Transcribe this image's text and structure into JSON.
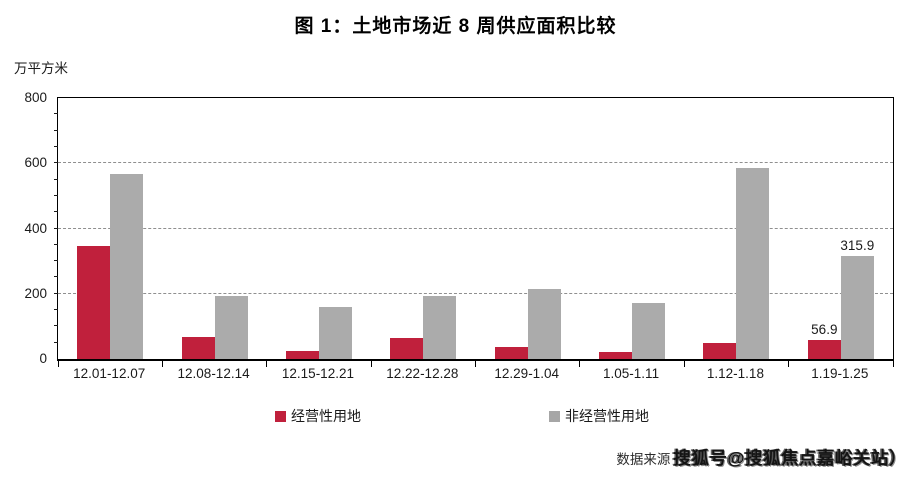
{
  "chart_data": {
    "type": "bar",
    "title": "图 1：土地市场近 8 周供应面积比较",
    "unit_label": "万平方米",
    "categories": [
      "12.01-12.07",
      "12.08-12.14",
      "12.15-12.21",
      "12.22-12.28",
      "12.29-1.04",
      "1.05-1.11",
      "1.12-1.18",
      "1.19-1.25"
    ],
    "series": [
      {
        "name": "经营性用地",
        "color": "#c0203c",
        "legend_color": "#c0203c",
        "values": [
          345,
          69,
          25,
          63,
          38,
          23,
          48,
          56.9
        ]
      },
      {
        "name": "非经营性用地",
        "color": "#ababab",
        "legend_color": "#a6a6a6",
        "values": [
          568,
          194,
          158,
          192,
          216,
          172,
          585,
          315.9
        ]
      }
    ],
    "ylim": [
      0,
      800
    ],
    "yticks": [
      0,
      200,
      400,
      600,
      800
    ],
    "minor_tick_step": 50,
    "grid": "horizontal-dashed",
    "legend_position": "bottom",
    "data_labels": [
      {
        "series_index": 0,
        "category_index": 7,
        "text": "56.9"
      },
      {
        "series_index": 1,
        "category_index": 7,
        "text": "315.9"
      }
    ]
  },
  "footer": {
    "source_prefix": "数据来源",
    "watermark": "搜狐号@搜狐焦点嘉峪关站）"
  }
}
